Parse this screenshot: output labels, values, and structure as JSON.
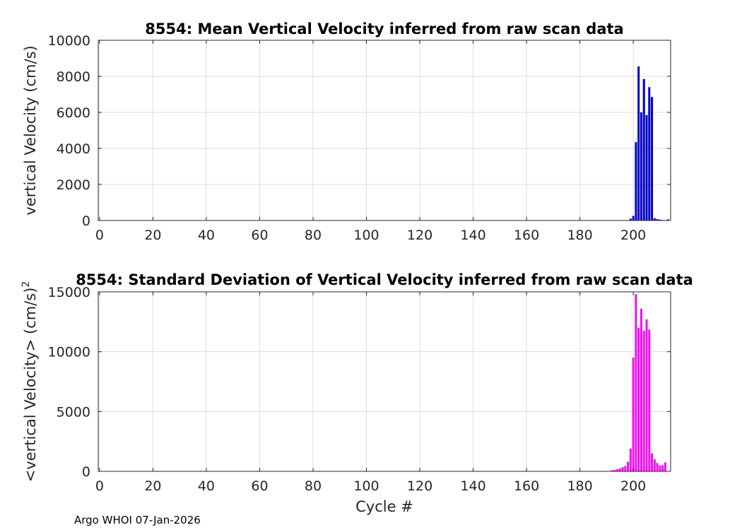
{
  "chart_data": [
    {
      "type": "bar",
      "title": "8554: Mean Vertical Velocity inferred from raw scan data",
      "xlabel": "",
      "ylabel": "vertical Velocity (cm/s)",
      "xlim": [
        -0.5,
        214
      ],
      "ylim": [
        0,
        10000
      ],
      "xticks": [
        0,
        20,
        40,
        60,
        80,
        100,
        120,
        140,
        160,
        180,
        200
      ],
      "yticks": [
        0,
        2000,
        4000,
        6000,
        8000,
        10000
      ],
      "grid": true,
      "color": "#0000cc",
      "bar_width": 0.8,
      "points": [
        {
          "x": 199,
          "y": 100
        },
        {
          "x": 200,
          "y": 250
        },
        {
          "x": 201,
          "y": 4350
        },
        {
          "x": 202,
          "y": 8550
        },
        {
          "x": 203,
          "y": 6000
        },
        {
          "x": 204,
          "y": 7850
        },
        {
          "x": 205,
          "y": 5850
        },
        {
          "x": 206,
          "y": 7400
        },
        {
          "x": 207,
          "y": 6850
        },
        {
          "x": 208,
          "y": 130
        },
        {
          "x": 209,
          "y": 80
        },
        {
          "x": 210,
          "y": 50
        },
        {
          "x": 211,
          "y": 30
        },
        {
          "x": 213,
          "y": 60
        }
      ]
    },
    {
      "type": "bar",
      "title": "8554: Standard Deviation of Vertical Velocity inferred from raw scan data",
      "xlabel": "Cycle #",
      "ylabel": "<vertical Velocity> (cm/s)",
      "ylabel_superscript": "2",
      "xlim": [
        -0.5,
        214
      ],
      "ylim": [
        0,
        15000
      ],
      "xticks": [
        0,
        20,
        40,
        60,
        80,
        100,
        120,
        140,
        160,
        180,
        200
      ],
      "yticks": [
        0,
        5000,
        10000,
        15000
      ],
      "grid": true,
      "color": "#ee11ee",
      "bar_width": 0.8,
      "points": [
        {
          "x": 192,
          "y": 100
        },
        {
          "x": 193,
          "y": 120
        },
        {
          "x": 194,
          "y": 180
        },
        {
          "x": 195,
          "y": 250
        },
        {
          "x": 196,
          "y": 350
        },
        {
          "x": 197,
          "y": 450
        },
        {
          "x": 198,
          "y": 800
        },
        {
          "x": 199,
          "y": 1900
        },
        {
          "x": 200,
          "y": 9500
        },
        {
          "x": 201,
          "y": 14800
        },
        {
          "x": 202,
          "y": 12000
        },
        {
          "x": 203,
          "y": 13600
        },
        {
          "x": 204,
          "y": 11750
        },
        {
          "x": 205,
          "y": 12700
        },
        {
          "x": 206,
          "y": 11850
        },
        {
          "x": 207,
          "y": 1500
        },
        {
          "x": 208,
          "y": 1000
        },
        {
          "x": 209,
          "y": 700
        },
        {
          "x": 210,
          "y": 500
        },
        {
          "x": 211,
          "y": 500
        },
        {
          "x": 212,
          "y": 750
        }
      ]
    }
  ],
  "footer": {
    "label": "Argo WHOI 07-Jan-2026"
  }
}
